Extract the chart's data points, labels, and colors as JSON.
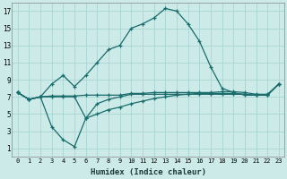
{
  "xlabel": "Humidex (Indice chaleur)",
  "bg_color": "#cceae8",
  "grid_color": "#aad4d2",
  "line_color": "#1a6b6b",
  "xlim": [
    -0.5,
    23.5
  ],
  "ylim": [
    0,
    18
  ],
  "xticks": [
    0,
    1,
    2,
    3,
    4,
    5,
    6,
    7,
    8,
    9,
    10,
    11,
    12,
    13,
    14,
    15,
    16,
    17,
    18,
    19,
    20,
    21,
    22,
    23
  ],
  "yticks": [
    1,
    3,
    5,
    7,
    9,
    11,
    13,
    15,
    17
  ],
  "line1_x": [
    0,
    1,
    2,
    3,
    4,
    5,
    6,
    7,
    8,
    9,
    10,
    11,
    12,
    13,
    14,
    15,
    16,
    17,
    18,
    19,
    20,
    21,
    22,
    23
  ],
  "line1_y": [
    7.5,
    6.7,
    7.0,
    8.5,
    9.5,
    8.2,
    9.5,
    11.0,
    12.5,
    13.0,
    15.0,
    15.5,
    16.2,
    17.3,
    17.0,
    15.5,
    13.5,
    10.5,
    8.0,
    7.5,
    7.2,
    7.2,
    7.2,
    8.5
  ],
  "line2_x": [
    0,
    1,
    2,
    3,
    4,
    5,
    6,
    7,
    8,
    9,
    10,
    11,
    12,
    13,
    14,
    15,
    16,
    17,
    18,
    19,
    20,
    21,
    22,
    23
  ],
  "line2_y": [
    7.5,
    6.7,
    7.0,
    3.5,
    2.0,
    1.2,
    4.5,
    6.2,
    6.7,
    7.0,
    7.3,
    7.3,
    7.3,
    7.3,
    7.3,
    7.3,
    7.3,
    7.3,
    7.3,
    7.3,
    7.3,
    7.2,
    7.2,
    8.5
  ],
  "line3_x": [
    0,
    1,
    2,
    3,
    4,
    5,
    6,
    7,
    8,
    9,
    10,
    11,
    12,
    13,
    14,
    15,
    16,
    17,
    18,
    19,
    20,
    21,
    22,
    23
  ],
  "line3_y": [
    7.5,
    6.7,
    7.0,
    7.1,
    7.1,
    7.1,
    7.2,
    7.2,
    7.2,
    7.2,
    7.4,
    7.4,
    7.5,
    7.5,
    7.5,
    7.5,
    7.5,
    7.5,
    7.6,
    7.6,
    7.5,
    7.3,
    7.3,
    8.5
  ],
  "line4_x": [
    0,
    1,
    2,
    3,
    4,
    5,
    6,
    7,
    8,
    9,
    10,
    11,
    12,
    13,
    14,
    15,
    16,
    17,
    18,
    19,
    20,
    21,
    22,
    23
  ],
  "line4_y": [
    7.5,
    6.7,
    7.0,
    7.0,
    7.0,
    7.0,
    4.5,
    5.0,
    5.5,
    5.8,
    6.2,
    6.5,
    6.8,
    7.0,
    7.2,
    7.3,
    7.4,
    7.4,
    7.4,
    7.4,
    7.3,
    7.2,
    7.2,
    8.5
  ]
}
